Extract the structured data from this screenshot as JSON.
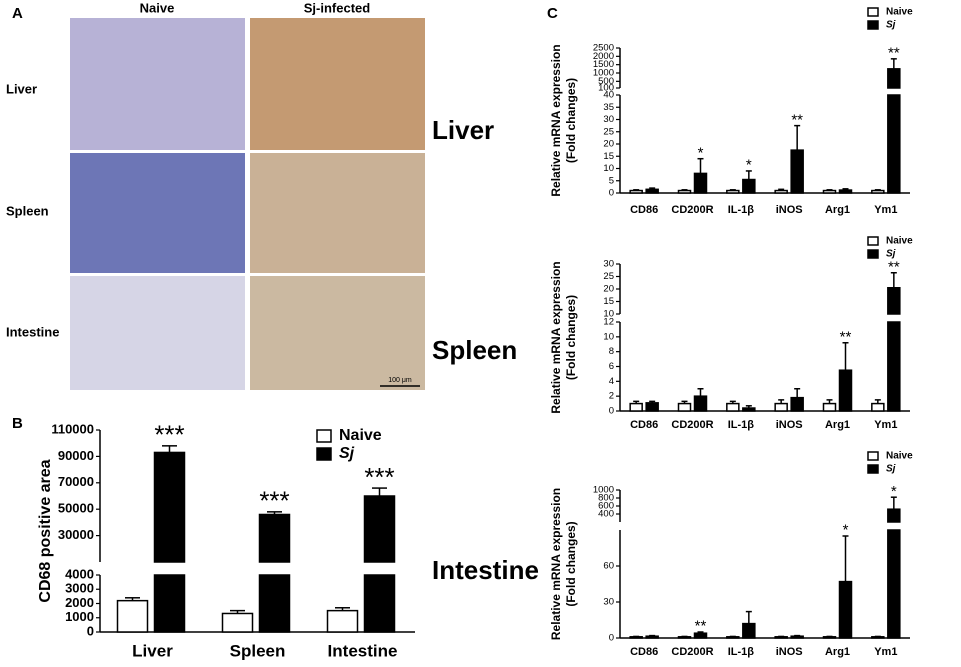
{
  "panel_a": {
    "letter": "A",
    "columns": [
      "Naive",
      "Sj-infected"
    ],
    "rows": [
      "Liver",
      "Spleen",
      "Intestine"
    ],
    "scale_bar": "100 μm"
  },
  "chart_data": [
    {
      "type": "bar",
      "panel": "B",
      "y_label": [
        "CD68 positive area"
      ],
      "categories": [
        "Liver",
        "Spleen",
        "Intestine"
      ],
      "y_segments": [
        {
          "ylim": [
            0,
            4000
          ],
          "yticks": [
            0,
            1000,
            2000,
            3000,
            4000
          ]
        },
        {
          "ylim": [
            10000,
            110000
          ],
          "yticks": [
            30000,
            50000,
            70000,
            90000,
            110000
          ]
        }
      ],
      "legend": "upper right",
      "series": [
        {
          "name": "Naive",
          "color": "#ffffff",
          "values": [
            2200,
            1300,
            1500
          ],
          "errors": [
            200,
            200,
            200
          ]
        },
        {
          "name": "Sj",
          "color": "#000000",
          "values": [
            93000,
            46000,
            60000
          ],
          "errors": [
            5000,
            2000,
            6000
          ],
          "annotations": [
            "***",
            "***",
            "***"
          ]
        }
      ]
    },
    {
      "type": "bar",
      "panel": "C",
      "title": "Liver",
      "y_label": [
        "Relative mRNA expression",
        "(Fold changes)"
      ],
      "categories": [
        "CD86",
        "CD200R",
        "IL-1β",
        "iNOS",
        "Arg1",
        "Ym1"
      ],
      "y_segments": [
        {
          "ylim": [
            0,
            40
          ],
          "yticks": [
            0,
            5,
            10,
            15,
            20,
            25,
            30,
            35,
            40
          ]
        },
        {
          "ylim": [
            100,
            2500
          ],
          "yticks": [
            100,
            500,
            1000,
            1500,
            2000,
            2500
          ]
        }
      ],
      "legend": "upper right",
      "series": [
        {
          "name": "Naive",
          "color": "#ffffff",
          "values": [
            1,
            1,
            1,
            1,
            1,
            1
          ],
          "errors": [
            0.3,
            0.3,
            0.3,
            0.5,
            0.3,
            0.3
          ]
        },
        {
          "name": "Sj",
          "color": "#000000",
          "values": [
            1.5,
            8,
            5.5,
            17.5,
            1.2,
            1250
          ],
          "errors": [
            0.5,
            6,
            3.5,
            10,
            0.5,
            600
          ],
          "annotations": [
            null,
            "*",
            "*",
            "**",
            null,
            "**"
          ]
        }
      ]
    },
    {
      "type": "bar",
      "title": "Spleen",
      "y_label": [
        "Relative mRNA expression",
        "(Fold changes)"
      ],
      "categories": [
        "CD86",
        "CD200R",
        "IL-1β",
        "iNOS",
        "Arg1",
        "Ym1"
      ],
      "y_segments": [
        {
          "ylim": [
            0,
            12
          ],
          "yticks": [
            0,
            2,
            4,
            6,
            8,
            10,
            12
          ]
        },
        {
          "ylim": [
            10,
            30
          ],
          "yticks": [
            10,
            15,
            20,
            25,
            30
          ]
        }
      ],
      "legend": "upper right",
      "series": [
        {
          "name": "Naive",
          "color": "#ffffff",
          "values": [
            1,
            1,
            1,
            1,
            1,
            1
          ],
          "errors": [
            0.3,
            0.3,
            0.3,
            0.5,
            0.5,
            0.5
          ]
        },
        {
          "name": "Sj",
          "color": "#000000",
          "values": [
            1.1,
            2,
            0.4,
            1.8,
            5.5,
            20.5
          ],
          "errors": [
            0.2,
            1,
            0.3,
            1.2,
            3.7,
            6
          ],
          "annotations": [
            null,
            null,
            null,
            null,
            "**",
            "**"
          ]
        }
      ]
    },
    {
      "type": "bar",
      "title": "Intestine",
      "y_label": [
        "Relative mRNA expression",
        "(Fold changes)"
      ],
      "categories": [
        "CD86",
        "CD200R",
        "IL-1β",
        "iNOS",
        "Arg1",
        "Ym1"
      ],
      "y_segments": [
        {
          "ylim": [
            0,
            90
          ],
          "yticks": [
            0,
            30,
            60
          ]
        },
        {
          "ylim": [
            200,
            1000
          ],
          "yticks": [
            400,
            600,
            800,
            1000
          ]
        }
      ],
      "legend": "upper right",
      "series": [
        {
          "name": "Naive",
          "color": "#ffffff",
          "values": [
            1,
            1,
            1,
            1,
            1,
            1
          ],
          "errors": [
            0.3,
            0.3,
            0.3,
            0.3,
            0.3,
            0.3
          ]
        },
        {
          "name": "Sj",
          "color": "#000000",
          "values": [
            1.5,
            4,
            12,
            1.5,
            47,
            520
          ],
          "errors": [
            0.5,
            1,
            10,
            0.5,
            38,
            300
          ],
          "annotations": [
            null,
            "**",
            null,
            null,
            "*",
            "*"
          ]
        }
      ]
    }
  ]
}
